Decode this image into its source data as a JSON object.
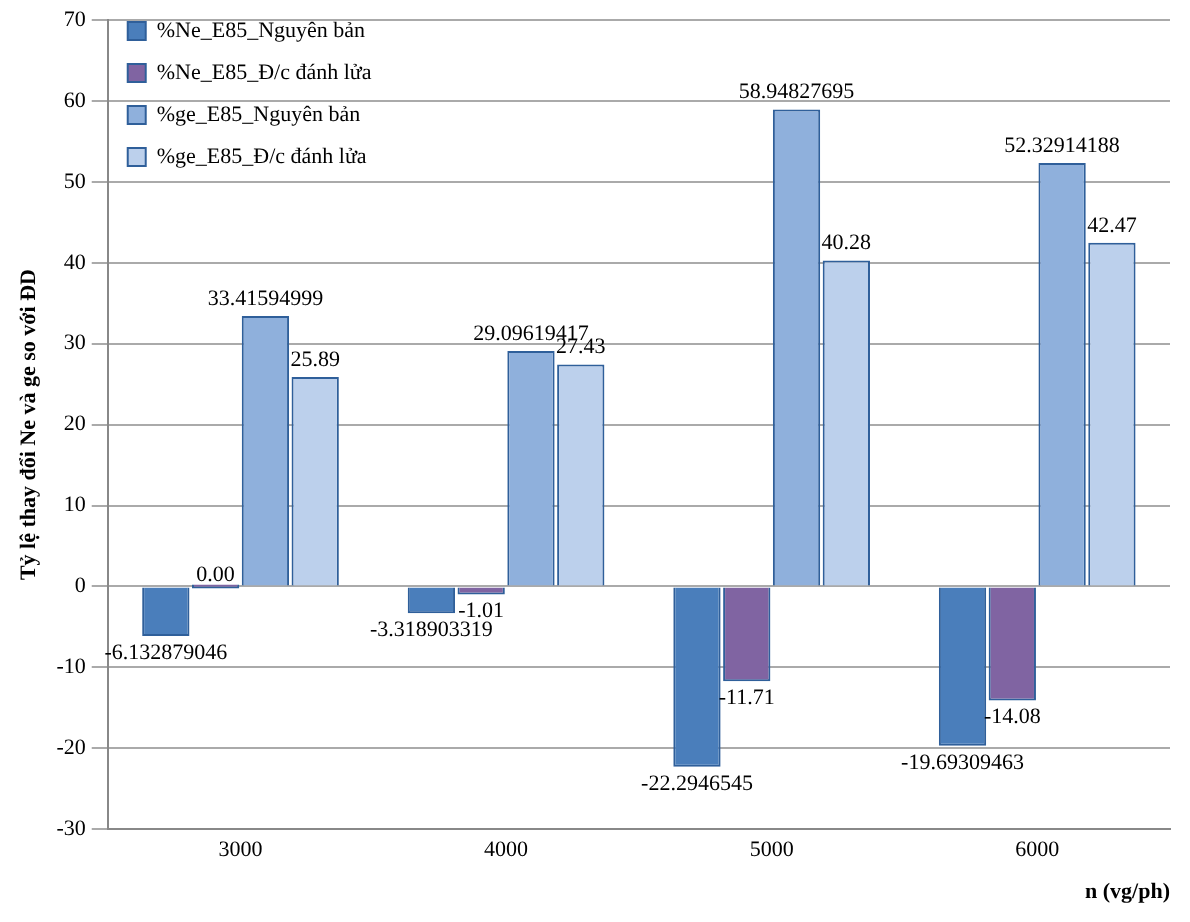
{
  "chart_data": {
    "type": "bar",
    "ylabel": "Tỷ lệ thay đổi Ne và ge so với ĐD",
    "xlabel": "n (vg/ph)",
    "categories": [
      "3000",
      "4000",
      "5000",
      "6000"
    ],
    "series": [
      {
        "name": "%Ne_E85_Nguyên bản",
        "color": "#4a7ebb",
        "values": [
          -6.132879046,
          -3.318903319,
          -22.2946545,
          -19.69309463
        ],
        "value_labels": [
          "-6.132879046",
          "-3.318903319",
          "-22.2946545",
          "-19.69309463"
        ]
      },
      {
        "name": "%Ne_E85_Đ/c đánh lửa",
        "color": "#8064a2",
        "values": [
          0,
          -1.01,
          -11.71,
          -14.08
        ],
        "value_labels": [
          "0.00",
          "-1.01",
          "-11.71",
          "-14.08"
        ]
      },
      {
        "name": "%ge_E85_Nguyên bản",
        "color": "#8fb0dc",
        "values": [
          33.41594999,
          29.09619417,
          58.94827695,
          52.32914188
        ],
        "value_labels": [
          "33.41594999",
          "29.09619417",
          "58.94827695",
          "52.32914188"
        ]
      },
      {
        "name": "%ge_E85_Đ/c đánh lửa",
        "color": "#bcd0ec",
        "values": [
          25.89,
          27.43,
          40.28,
          42.47
        ],
        "value_labels": [
          "25.89",
          "27.43",
          "40.28",
          "42.47"
        ]
      }
    ],
    "ylim": [
      -30,
      70
    ],
    "yticks": [
      -30,
      -20,
      -10,
      0,
      10,
      20,
      30,
      40,
      50,
      60,
      70
    ],
    "grid": "y",
    "legend": "top left"
  }
}
